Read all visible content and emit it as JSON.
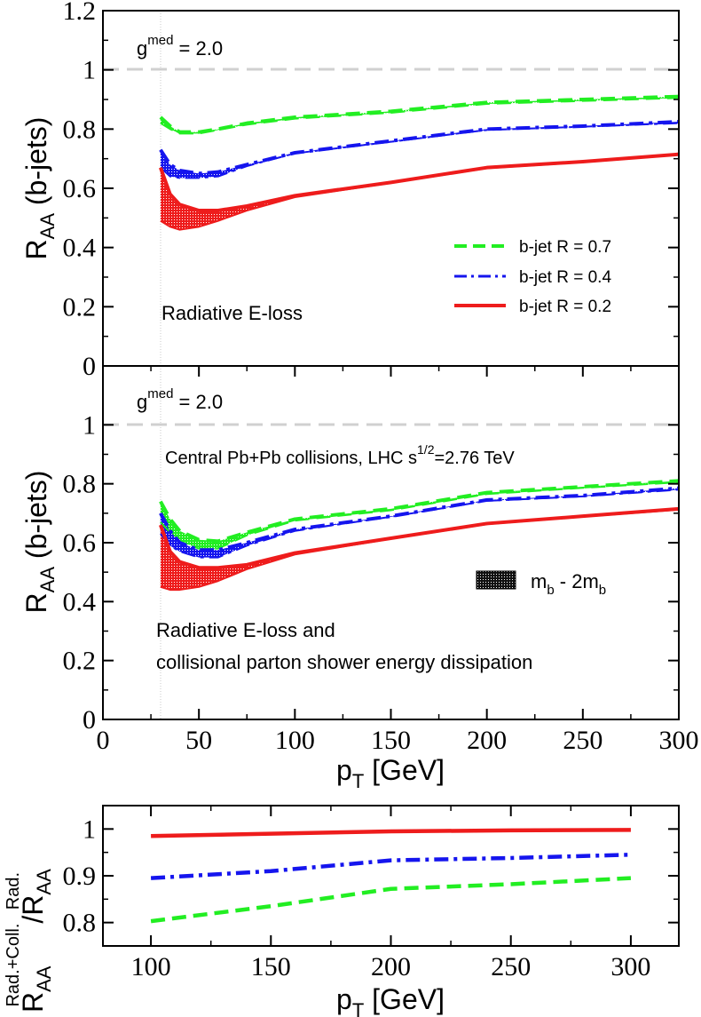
{
  "chart_data": [
    {
      "type": "line",
      "panel": "top",
      "title": "",
      "xlabel": "",
      "ylabel": {
        "main": "R",
        "sub": "AA",
        "rest": " (b-jets)"
      },
      "xlim": [
        0,
        300
      ],
      "ylim": [
        0,
        1.2
      ],
      "yticks": [
        0,
        0.2,
        0.4,
        0.6,
        0.8,
        1,
        1.2
      ],
      "yticklabels": [
        "0",
        "0.2",
        "0.4",
        "0.6",
        "0.8",
        "1",
        "1.2"
      ],
      "reference_line": 1,
      "annotations": {
        "gmed": {
          "base": "g",
          "sup": "med",
          "rest": " = 2.0"
        },
        "note": "Radiative E-loss"
      },
      "legend": [
        {
          "label": "b-jet R = 0.7",
          "color": "#22ee22",
          "style": "dashed"
        },
        {
          "label": "b-jet R = 0.4",
          "color": "#1515ee",
          "style": "dashdot"
        },
        {
          "label": "b-jet R = 0.2",
          "color": "#ee1c1c",
          "style": "solid"
        }
      ],
      "series": [
        {
          "name": "b-jet R = 0.7",
          "color": "#22ee22",
          "style": "dashed",
          "upper": [
            [
              30,
              0.84
            ],
            [
              35,
              0.81
            ],
            [
              40,
              0.79
            ],
            [
              50,
              0.79
            ],
            [
              60,
              0.8
            ],
            [
              75,
              0.82
            ],
            [
              100,
              0.84
            ],
            [
              150,
              0.86
            ],
            [
              200,
              0.89
            ],
            [
              250,
              0.9
            ],
            [
              300,
              0.91
            ]
          ],
          "lower": [
            [
              30,
              0.82
            ],
            [
              35,
              0.8
            ],
            [
              40,
              0.785
            ],
            [
              50,
              0.785
            ],
            [
              60,
              0.797
            ],
            [
              75,
              0.815
            ],
            [
              100,
              0.835
            ],
            [
              150,
              0.855
            ],
            [
              200,
              0.885
            ],
            [
              250,
              0.895
            ],
            [
              300,
              0.905
            ]
          ]
        },
        {
          "name": "b-jet R = 0.4",
          "color": "#1515ee",
          "style": "dashdot",
          "upper": [
            [
              30,
              0.73
            ],
            [
              35,
              0.68
            ],
            [
              40,
              0.66
            ],
            [
              50,
              0.65
            ],
            [
              60,
              0.655
            ],
            [
              75,
              0.68
            ],
            [
              100,
              0.72
            ],
            [
              150,
              0.76
            ],
            [
              200,
              0.8
            ],
            [
              250,
              0.81
            ],
            [
              300,
              0.825
            ]
          ],
          "lower": [
            [
              30,
              0.67
            ],
            [
              35,
              0.64
            ],
            [
              40,
              0.635
            ],
            [
              50,
              0.635
            ],
            [
              60,
              0.64
            ],
            [
              75,
              0.675
            ],
            [
              100,
              0.718
            ],
            [
              150,
              0.757
            ],
            [
              200,
              0.797
            ],
            [
              250,
              0.808
            ],
            [
              300,
              0.82
            ]
          ]
        },
        {
          "name": "b-jet R = 0.2",
          "color": "#ee1c1c",
          "style": "solid",
          "upper": [
            [
              30,
              0.67
            ],
            [
              35,
              0.58
            ],
            [
              40,
              0.545
            ],
            [
              50,
              0.525
            ],
            [
              60,
              0.525
            ],
            [
              75,
              0.54
            ],
            [
              100,
              0.575
            ],
            [
              150,
              0.62
            ],
            [
              200,
              0.67
            ],
            [
              250,
              0.69
            ],
            [
              300,
              0.715
            ]
          ],
          "lower": [
            [
              30,
              0.49
            ],
            [
              35,
              0.47
            ],
            [
              40,
              0.46
            ],
            [
              50,
              0.47
            ],
            [
              60,
              0.49
            ],
            [
              75,
              0.525
            ],
            [
              100,
              0.57
            ],
            [
              150,
              0.618
            ],
            [
              200,
              0.668
            ],
            [
              250,
              0.688
            ],
            [
              300,
              0.713
            ]
          ]
        }
      ]
    },
    {
      "type": "line",
      "panel": "middle",
      "title": "",
      "xlabel": {
        "main": "p",
        "sub": "T",
        "rest": " [GeV]"
      },
      "ylabel": {
        "main": "R",
        "sub": "AA",
        "rest": " (b-jets)"
      },
      "xlim": [
        0,
        300
      ],
      "ylim": [
        0,
        1.2
      ],
      "xticks": [
        0,
        50,
        100,
        150,
        200,
        250,
        300
      ],
      "xticklabels": [
        "0",
        "50",
        "100",
        "150",
        "200",
        "250",
        "300"
      ],
      "yticks": [
        0,
        0.2,
        0.4,
        0.6,
        0.8,
        1
      ],
      "yticklabels": [
        "0",
        "0.2",
        "0.4",
        "0.6",
        "0.8",
        "1"
      ],
      "reference_line": 1,
      "annotations": {
        "gmed": {
          "base": "g",
          "sup": "med",
          "rest": " = 2.0"
        },
        "collisions": {
          "before": "Central Pb+Pb collisions, LHC s",
          "sup": "1/2",
          "after": "=2.76 TeV"
        },
        "note_line1": "Radiative E-loss and",
        "note_line2": "collisional parton shower energy dissipation",
        "band_legend": {
          "base": "m",
          "sub1": "b",
          "mid": " - 2m",
          "sub2": "b"
        }
      },
      "series": [
        {
          "name": "b-jet R = 0.7",
          "color": "#22ee22",
          "style": "dashed",
          "upper": [
            [
              30,
              0.74
            ],
            [
              35,
              0.68
            ],
            [
              40,
              0.64
            ],
            [
              50,
              0.61
            ],
            [
              60,
              0.605
            ],
            [
              75,
              0.635
            ],
            [
              100,
              0.68
            ],
            [
              150,
              0.715
            ],
            [
              200,
              0.77
            ],
            [
              250,
              0.79
            ],
            [
              300,
              0.81
            ]
          ],
          "lower": [
            [
              30,
              0.67
            ],
            [
              35,
              0.635
            ],
            [
              40,
              0.605
            ],
            [
              50,
              0.58
            ],
            [
              60,
              0.58
            ],
            [
              75,
              0.625
            ],
            [
              100,
              0.675
            ],
            [
              150,
              0.71
            ],
            [
              200,
              0.765
            ],
            [
              250,
              0.786
            ],
            [
              300,
              0.805
            ]
          ]
        },
        {
          "name": "b-jet R = 0.4",
          "color": "#1515ee",
          "style": "dashdot",
          "upper": [
            [
              30,
              0.7
            ],
            [
              35,
              0.64
            ],
            [
              40,
              0.6
            ],
            [
              50,
              0.575
            ],
            [
              60,
              0.575
            ],
            [
              75,
              0.6
            ],
            [
              100,
              0.645
            ],
            [
              150,
              0.69
            ],
            [
              200,
              0.745
            ],
            [
              250,
              0.76
            ],
            [
              300,
              0.785
            ]
          ],
          "lower": [
            [
              30,
              0.63
            ],
            [
              35,
              0.59
            ],
            [
              40,
              0.57
            ],
            [
              50,
              0.55
            ],
            [
              60,
              0.55
            ],
            [
              75,
              0.59
            ],
            [
              100,
              0.64
            ],
            [
              150,
              0.688
            ],
            [
              200,
              0.742
            ],
            [
              250,
              0.757
            ],
            [
              300,
              0.78
            ]
          ]
        },
        {
          "name": "b-jet R = 0.2",
          "color": "#ee1c1c",
          "style": "solid",
          "upper": [
            [
              30,
              0.66
            ],
            [
              35,
              0.57
            ],
            [
              40,
              0.535
            ],
            [
              50,
              0.515
            ],
            [
              60,
              0.515
            ],
            [
              75,
              0.525
            ],
            [
              100,
              0.565
            ],
            [
              150,
              0.615
            ],
            [
              200,
              0.665
            ],
            [
              250,
              0.69
            ],
            [
              300,
              0.715
            ]
          ],
          "lower": [
            [
              30,
              0.45
            ],
            [
              35,
              0.44
            ],
            [
              40,
              0.44
            ],
            [
              50,
              0.45
            ],
            [
              60,
              0.47
            ],
            [
              75,
              0.51
            ],
            [
              100,
              0.56
            ],
            [
              150,
              0.613
            ],
            [
              200,
              0.663
            ],
            [
              250,
              0.688
            ],
            [
              300,
              0.712
            ]
          ]
        }
      ]
    },
    {
      "type": "line",
      "panel": "bottom",
      "title": "",
      "xlabel": {
        "main": "p",
        "sub": "T",
        "rest": " [GeV]"
      },
      "ylabel": {
        "top_main": "R",
        "top_sub": "AA",
        "top_sup": "Rad.+Coll.",
        "slash": "/",
        "bot_main": "R",
        "bot_sub": "AA",
        "bot_sup": "Rad."
      },
      "xlim": [
        80,
        320
      ],
      "ylim": [
        0.75,
        1.05
      ],
      "xticks": [
        100,
        150,
        200,
        250,
        300
      ],
      "xticklabels": [
        "100",
        "150",
        "200",
        "250",
        "300"
      ],
      "yticks": [
        0.8,
        0.9,
        1
      ],
      "yticklabels": [
        "0.8",
        "0.9",
        "1"
      ],
      "series": [
        {
          "name": "b-jet R = 0.2",
          "color": "#ee1c1c",
          "style": "solid",
          "x": [
            100,
            150,
            200,
            250,
            300
          ],
          "y": [
            0.985,
            0.99,
            0.995,
            0.997,
            0.998
          ]
        },
        {
          "name": "b-jet R = 0.4",
          "color": "#1515ee",
          "style": "dashdot",
          "x": [
            100,
            150,
            200,
            250,
            300
          ],
          "y": [
            0.895,
            0.91,
            0.933,
            0.938,
            0.945
          ]
        },
        {
          "name": "b-jet R = 0.7",
          "color": "#22ee22",
          "style": "dashed",
          "x": [
            100,
            150,
            200,
            250,
            300
          ],
          "y": [
            0.803,
            0.835,
            0.872,
            0.882,
            0.895
          ]
        }
      ]
    }
  ]
}
